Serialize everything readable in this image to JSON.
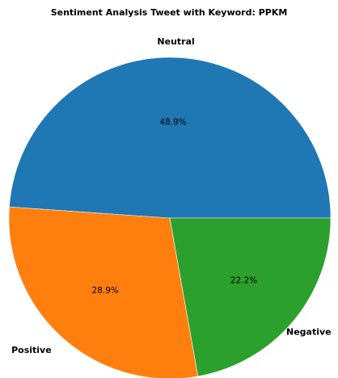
{
  "chart_data": {
    "type": "pie",
    "title": "Sentiment Analysis Tweet with Keyword: PPKM",
    "categories": [
      "Neutral",
      "Positive",
      "Negative"
    ],
    "values": [
      48.9,
      28.9,
      22.2
    ],
    "value_labels": [
      "48.9%",
      "28.9%",
      "22.2%"
    ],
    "unit": "%",
    "colors": [
      "#1f77b4",
      "#ff7f0e",
      "#2ca02c"
    ],
    "start_angle_deg": 0,
    "direction": "counterclockwise",
    "legend": "none"
  }
}
